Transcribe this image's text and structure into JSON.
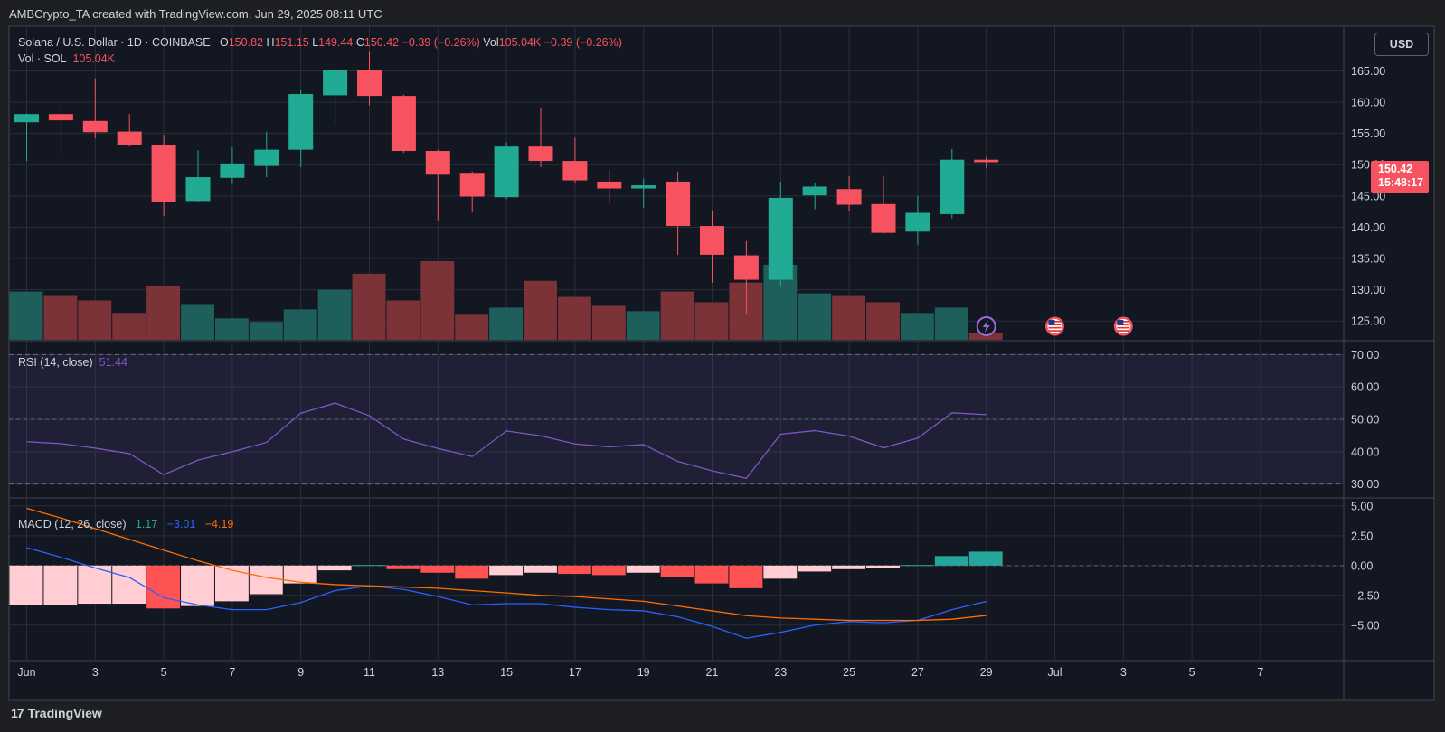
{
  "header": {
    "caption": "AMBCrypto_TA created with TradingView.com, Jun 29, 2025 08:11 UTC"
  },
  "footer": {
    "brand": "TradingView",
    "logo_glyph": "17"
  },
  "toolbar": {
    "currency_label": "USD"
  },
  "legend_main": {
    "symbol": "Solana / U.S. Dollar · 1D · COINBASE",
    "o_label": "O",
    "o_value": "150.82",
    "h_label": "H",
    "h_value": "151.15",
    "l_label": "L",
    "l_value": "149.44",
    "c_label": "C",
    "c_value": "150.42",
    "change": "−0.39 (−0.26%)",
    "vol_label": "Vol",
    "vol_value": "105.04K",
    "vol_change": "−0.39 (−0.26%)"
  },
  "legend_vol": {
    "label": "Vol · SOL",
    "value": "105.04K"
  },
  "legend_rsi": {
    "label": "RSI (14, close)",
    "value": "51.44"
  },
  "legend_macd": {
    "label": "MACD (12, 26, close)",
    "hist": "1.17",
    "macd": "−3.01",
    "signal": "−4.19"
  },
  "price_tag": {
    "price": "150.42",
    "countdown": "15:48:17"
  },
  "colors": {
    "up": "#22ab94",
    "down": "#f7525f",
    "vol_up": "#1f5f5b",
    "vol_down": "#7b3338",
    "rsi": "#7e57c2",
    "macd": "#2962ff",
    "signal": "#ff6d00",
    "hist_pos_strong": "#26a69a",
    "hist_neg_strong": "#ff5252",
    "hist_neg_weak": "#ffcdd2",
    "background": "#131722",
    "grid": "#2a2e39",
    "frame": "#1e1f23"
  },
  "events": [
    {
      "day": 29,
      "icon": "lightning-icon"
    },
    {
      "day": 31,
      "icon": "us-flag-icon"
    },
    {
      "day": 33,
      "icon": "us-flag-icon"
    }
  ],
  "chart_data": [
    {
      "type": "candlestick",
      "title": "Solana / U.S. Dollar · 1D · COINBASE",
      "x_tick_labels": [
        {
          "day": 1,
          "label": "Jun"
        },
        {
          "day": 3,
          "label": "3"
        },
        {
          "day": 5,
          "label": "5"
        },
        {
          "day": 7,
          "label": "7"
        },
        {
          "day": 9,
          "label": "9"
        },
        {
          "day": 11,
          "label": "11"
        },
        {
          "day": 13,
          "label": "13"
        },
        {
          "day": 15,
          "label": "15"
        },
        {
          "day": 17,
          "label": "17"
        },
        {
          "day": 19,
          "label": "19"
        },
        {
          "day": 21,
          "label": "21"
        },
        {
          "day": 23,
          "label": "23"
        },
        {
          "day": 25,
          "label": "25"
        },
        {
          "day": 27,
          "label": "27"
        },
        {
          "day": 29,
          "label": "29"
        },
        {
          "day": 31,
          "label": "Jul"
        },
        {
          "day": 33,
          "label": "3"
        },
        {
          "day": 35,
          "label": "5"
        },
        {
          "day": 37,
          "label": "7"
        }
      ],
      "y_ticks": [
        "165.00",
        "160.00",
        "155.00",
        "150.00",
        "145.00",
        "140.00",
        "135.00",
        "130.00",
        "125.00"
      ],
      "ylim": [
        122,
        172
      ],
      "ohlc": [
        {
          "day": 1,
          "o": 156.8,
          "h": 158.2,
          "l": 150.6,
          "c": 158.1
        },
        {
          "day": 2,
          "o": 158.1,
          "h": 159.2,
          "l": 151.8,
          "c": 157.1
        },
        {
          "day": 3,
          "o": 157.0,
          "h": 163.8,
          "l": 154.2,
          "c": 155.2
        },
        {
          "day": 4,
          "o": 155.3,
          "h": 158.1,
          "l": 152.9,
          "c": 153.2
        },
        {
          "day": 5,
          "o": 153.2,
          "h": 154.8,
          "l": 141.8,
          "c": 144.1
        },
        {
          "day": 6,
          "o": 144.2,
          "h": 152.3,
          "l": 144.0,
          "c": 148.0
        },
        {
          "day": 7,
          "o": 147.9,
          "h": 152.8,
          "l": 146.9,
          "c": 150.2
        },
        {
          "day": 8,
          "o": 149.8,
          "h": 155.3,
          "l": 148.0,
          "c": 152.4
        },
        {
          "day": 9,
          "o": 152.4,
          "h": 161.9,
          "l": 149.6,
          "c": 161.3
        },
        {
          "day": 10,
          "o": 161.1,
          "h": 165.5,
          "l": 156.6,
          "c": 165.2
        },
        {
          "day": 11,
          "o": 165.2,
          "h": 168.2,
          "l": 159.5,
          "c": 161.0
        },
        {
          "day": 12,
          "o": 161.0,
          "h": 161.2,
          "l": 151.9,
          "c": 152.2
        },
        {
          "day": 13,
          "o": 152.2,
          "h": 152.4,
          "l": 141.1,
          "c": 148.4
        },
        {
          "day": 14,
          "o": 148.7,
          "h": 148.9,
          "l": 142.4,
          "c": 144.9
        },
        {
          "day": 15,
          "o": 144.8,
          "h": 153.6,
          "l": 144.5,
          "c": 152.9
        },
        {
          "day": 16,
          "o": 152.9,
          "h": 159.0,
          "l": 149.6,
          "c": 150.6
        },
        {
          "day": 17,
          "o": 150.6,
          "h": 154.3,
          "l": 147.1,
          "c": 147.5
        },
        {
          "day": 18,
          "o": 147.3,
          "h": 149.1,
          "l": 143.8,
          "c": 146.2
        },
        {
          "day": 19,
          "o": 146.2,
          "h": 147.8,
          "l": 143.1,
          "c": 146.7
        },
        {
          "day": 20,
          "o": 147.3,
          "h": 148.9,
          "l": 135.6,
          "c": 140.2
        },
        {
          "day": 21,
          "o": 140.2,
          "h": 142.7,
          "l": 131.1,
          "c": 135.6
        },
        {
          "day": 22,
          "o": 135.5,
          "h": 137.8,
          "l": 126.2,
          "c": 131.6
        },
        {
          "day": 23,
          "o": 131.6,
          "h": 147.3,
          "l": 130.5,
          "c": 144.7
        },
        {
          "day": 24,
          "o": 145.1,
          "h": 147.1,
          "l": 142.9,
          "c": 146.5
        },
        {
          "day": 25,
          "o": 146.1,
          "h": 148.2,
          "l": 142.5,
          "c": 143.6
        },
        {
          "day": 26,
          "o": 143.7,
          "h": 148.2,
          "l": 138.9,
          "c": 139.1
        },
        {
          "day": 27,
          "o": 139.3,
          "h": 145.0,
          "l": 137.2,
          "c": 142.3
        },
        {
          "day": 28,
          "o": 142.1,
          "h": 152.5,
          "l": 141.4,
          "c": 150.8
        },
        {
          "day": 29,
          "o": 150.8,
          "h": 151.2,
          "l": 149.4,
          "c": 150.4
        }
      ],
      "volume": [
        27,
        25,
        22,
        15,
        30,
        20,
        12,
        10,
        17,
        28,
        37,
        22,
        44,
        14,
        18,
        33,
        24,
        19,
        16,
        27,
        21,
        32,
        42,
        26,
        25,
        21,
        15,
        18,
        4
      ]
    },
    {
      "type": "line",
      "title": "RSI (14, close)",
      "y_ticks": [
        "70.00",
        "60.00",
        "50.00",
        "40.00",
        "30.00"
      ],
      "ylim": [
        26,
        74
      ],
      "bands": [
        70,
        50,
        30
      ],
      "x": [
        1,
        2,
        3,
        4,
        5,
        6,
        7,
        8,
        9,
        10,
        11,
        12,
        13,
        14,
        15,
        16,
        17,
        18,
        19,
        20,
        21,
        22,
        23,
        24,
        25,
        26,
        27,
        28,
        29
      ],
      "values": [
        43.1,
        42.5,
        41.1,
        39.4,
        32.9,
        37.4,
        40.0,
        42.9,
        51.9,
        55.0,
        51.1,
        43.9,
        41.0,
        38.5,
        46.4,
        44.9,
        42.4,
        41.5,
        42.2,
        37.0,
        34.1,
        31.8,
        45.4,
        46.5,
        44.8,
        41.2,
        44.2,
        52.0,
        51.44
      ]
    },
    {
      "type": "bar+line",
      "title": "MACD (12, 26, close)",
      "y_ticks": [
        "5.00",
        "2.50",
        "0.00",
        "−2.50",
        "−5.00"
      ],
      "ylim": [
        -7.9,
        5.6
      ],
      "x": [
        1,
        2,
        3,
        4,
        5,
        6,
        7,
        8,
        9,
        10,
        11,
        12,
        13,
        14,
        15,
        16,
        17,
        18,
        19,
        20,
        21,
        22,
        23,
        24,
        25,
        26,
        27,
        28,
        29
      ],
      "histogram": [
        -3.3,
        -3.3,
        -3.2,
        -3.2,
        -3.6,
        -3.4,
        -3.0,
        -2.4,
        -1.5,
        -0.4,
        0.05,
        -0.3,
        -0.6,
        -1.1,
        -0.8,
        -0.6,
        -0.7,
        -0.8,
        -0.6,
        -1.0,
        -1.5,
        -1.9,
        -1.1,
        -0.5,
        -0.3,
        -0.2,
        0.05,
        0.8,
        1.17
      ],
      "macd": [
        1.5,
        0.7,
        -0.2,
        -1.0,
        -2.7,
        -3.3,
        -3.7,
        -3.7,
        -3.1,
        -2.1,
        -1.7,
        -2.0,
        -2.6,
        -3.3,
        -3.2,
        -3.2,
        -3.5,
        -3.7,
        -3.8,
        -4.3,
        -5.1,
        -6.1,
        -5.6,
        -5.0,
        -4.7,
        -4.8,
        -4.6,
        -3.7,
        -3.01
      ],
      "signal": [
        4.8,
        4.0,
        3.1,
        2.2,
        1.3,
        0.4,
        -0.4,
        -1.0,
        -1.4,
        -1.6,
        -1.7,
        -1.8,
        -1.9,
        -2.1,
        -2.3,
        -2.5,
        -2.6,
        -2.8,
        -3.0,
        -3.4,
        -3.8,
        -4.2,
        -4.4,
        -4.5,
        -4.6,
        -4.6,
        -4.6,
        -4.5,
        -4.19
      ]
    }
  ]
}
